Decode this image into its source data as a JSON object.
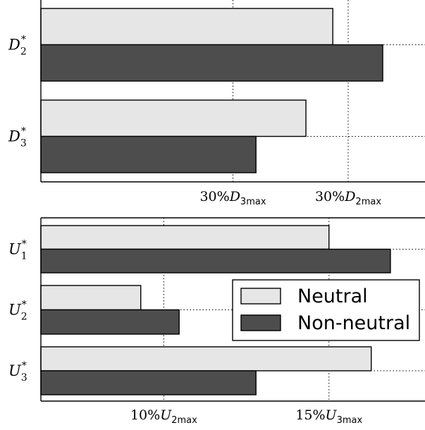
{
  "colors": {
    "neutral": "#e6e6e6",
    "nonneutral": "#4d4d4d"
  },
  "chart_data": [
    {
      "type": "bar",
      "orientation": "horizontal",
      "categories": [
        {
          "base": "D",
          "sub": "2",
          "sup": "*"
        },
        {
          "base": "D",
          "sub": "3",
          "sup": "*"
        }
      ],
      "series": [
        {
          "values": [
            0.76,
            0.69
          ]
        },
        {
          "values": [
            0.89,
            0.56
          ]
        }
      ],
      "xlim": [
        0,
        1
      ],
      "reference_lines": [
        {
          "value": 0.5,
          "label": {
            "prefix": "30%",
            "base": "D",
            "sub": "3max"
          }
        },
        {
          "value": 0.8,
          "label": {
            "prefix": "30%",
            "base": "D",
            "sub": "2max"
          }
        }
      ],
      "category_gridlines": true
    },
    {
      "type": "bar",
      "orientation": "horizontal",
      "categories": [
        {
          "base": "U",
          "sub": "1",
          "sup": "*"
        },
        {
          "base": "U",
          "sub": "2",
          "sup": "*"
        },
        {
          "base": "U",
          "sub": "3",
          "sup": "*"
        }
      ],
      "series": [
        {
          "name": "Neutral",
          "values": [
            0.75,
            0.26,
            0.86
          ]
        },
        {
          "name": "Non-neutral",
          "values": [
            0.91,
            0.36,
            0.56
          ]
        }
      ],
      "xlim": [
        0,
        1
      ],
      "reference_lines": [
        {
          "value": 0.32,
          "label": {
            "prefix": "10%",
            "base": "U",
            "sub": "2max"
          }
        },
        {
          "value": 0.75,
          "label": {
            "prefix": "15%",
            "base": "U",
            "sub": "3max"
          }
        }
      ],
      "category_gridlines": true,
      "legend": {
        "position": "lower-right",
        "entries": [
          "Neutral",
          "Non-neutral"
        ]
      }
    }
  ]
}
